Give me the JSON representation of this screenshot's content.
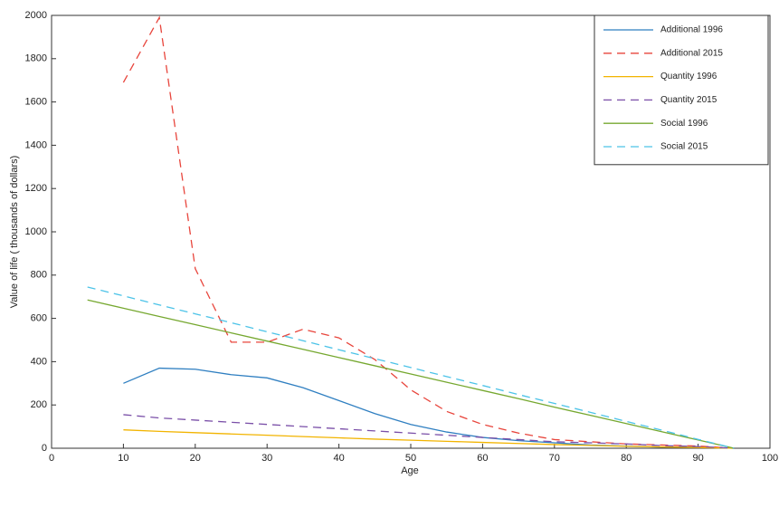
{
  "chart_data": {
    "type": "line",
    "xlabel": "Age",
    "ylabel": "Value of life ( thousands of dollars)",
    "x": [
      5,
      10,
      15,
      20,
      25,
      30,
      35,
      40,
      45,
      50,
      55,
      60,
      65,
      70,
      75,
      80,
      85,
      90,
      95
    ],
    "xlim": [
      0,
      100
    ],
    "xticks": [
      0,
      10,
      20,
      30,
      40,
      50,
      60,
      70,
      80,
      90,
      100
    ],
    "ylim": [
      0,
      2000
    ],
    "yticks": [
      0,
      200,
      400,
      600,
      800,
      1000,
      1200,
      1400,
      1600,
      1800,
      2000
    ],
    "legend": "upper right",
    "series": [
      {
        "name": "Additional 1996",
        "color": "#2f7fc1",
        "dashed": false,
        "values": [
          null,
          300,
          370,
          365,
          340,
          325,
          280,
          220,
          160,
          110,
          75,
          50,
          35,
          25,
          15,
          10,
          5,
          5,
          0
        ]
      },
      {
        "name": "Additional 2015",
        "color": "#e8453c",
        "dashed": true,
        "values": [
          null,
          1690,
          1990,
          830,
          490,
          490,
          550,
          510,
          410,
          270,
          170,
          110,
          70,
          40,
          30,
          20,
          15,
          10,
          0
        ]
      },
      {
        "name": "Quantity 1996",
        "color": "#f2b400",
        "dashed": false,
        "values": [
          null,
          85,
          78,
          72,
          66,
          60,
          54,
          48,
          42,
          37,
          32,
          27,
          22,
          17,
          13,
          9,
          6,
          3,
          0
        ]
      },
      {
        "name": "Quantity 2015",
        "color": "#7a4fa8",
        "dashed": true,
        "values": [
          null,
          155,
          140,
          130,
          120,
          110,
          100,
          90,
          80,
          70,
          60,
          50,
          40,
          30,
          25,
          20,
          12,
          8,
          0
        ]
      },
      {
        "name": "Social 1996",
        "color": "#76a830",
        "dashed": false,
        "values": [
          685,
          647,
          609,
          571,
          533,
          495,
          457,
          419,
          381,
          343,
          305,
          267,
          229,
          190,
          152,
          114,
          76,
          38,
          0
        ]
      },
      {
        "name": "Social 2015",
        "color": "#4cc3e8",
        "dashed": true,
        "values": [
          745,
          704,
          662,
          621,
          580,
          538,
          497,
          455,
          414,
          373,
          331,
          290,
          248,
          207,
          166,
          124,
          83,
          41,
          0
        ]
      }
    ]
  }
}
